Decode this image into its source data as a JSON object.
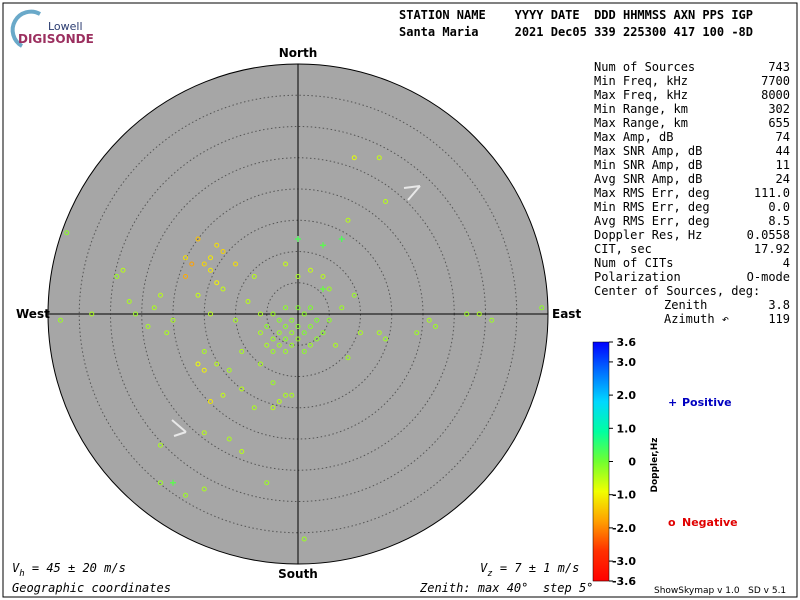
{
  "header": {
    "logo_top": "Lowell",
    "logo_bottom": "DIGISONDE",
    "line1": "STATION NAME    YYYY DATE  DDD HHMMSS AXN PPS IGP",
    "line2": "Santa Maria     2021 Dec05 339 225300 417 100 -8D"
  },
  "stats": {
    "rows": [
      [
        "Num of Sources",
        "743"
      ],
      [
        "Min Freq, kHz",
        "7700"
      ],
      [
        "Max Freq, kHz",
        "8000"
      ],
      [
        "Min Range, km",
        "302"
      ],
      [
        "Max Range, km",
        "655"
      ],
      [
        "Max Amp, dB",
        "74"
      ],
      [
        "Max SNR Amp, dB",
        "44"
      ],
      [
        "Min SNR Amp, dB",
        "11"
      ],
      [
        "Avg SNR Amp, dB",
        "24"
      ],
      [
        "Max RMS Err, deg",
        "111.0"
      ],
      [
        "Min RMS Err, deg",
        "0.0"
      ],
      [
        "Avg RMS Err, deg",
        "8.5"
      ],
      [
        "Doppler Res, Hz",
        "0.0558"
      ],
      [
        "CIT, sec",
        "17.92"
      ],
      [
        "Num of CITs",
        "4"
      ],
      [
        "Polarization",
        "O-mode"
      ]
    ],
    "center_title": "Center of Sources, deg:",
    "center_rows": [
      [
        "Zenith",
        "3.8"
      ],
      [
        "Azimuth ↶",
        "119"
      ]
    ]
  },
  "chart_data": {
    "type": "skymap",
    "directions": {
      "north": "North",
      "south": "South",
      "east": "East",
      "west": "West"
    },
    "rlim": [
      0,
      40
    ],
    "rticks": [
      5,
      10,
      15,
      20,
      25,
      30,
      35
    ],
    "clim": [
      -3.6,
      3.6
    ],
    "cticks": [
      3.6,
      {
        "value": 3,
        "label": "3.0"
      },
      {
        "value": 2,
        "label": "2.0"
      },
      {
        "value": 1,
        "label": "1.0"
      },
      0,
      {
        "value": -1,
        "label": "-1.0"
      },
      {
        "value": -2,
        "label": "-2.0"
      },
      {
        "value": -3,
        "label": "-3.0"
      },
      -3.6
    ],
    "clabel": "Doppler,Hz",
    "colorscale": [
      "#0000ff",
      "#0070ff",
      "#00d8ff",
      "#00ffa0",
      "#70ff30",
      "#f0ff00",
      "#ffa000",
      "#ff3000",
      "#ff0000"
    ],
    "series": [
      {
        "name": "Positive",
        "marker": "+",
        "color": "#0000c0",
        "x": [
          0,
          4,
          7,
          -20,
          4
        ],
        "y": [
          12,
          11,
          12,
          -27,
          4
        ],
        "doppler": [
          0.3,
          0.2,
          0.3,
          0.2,
          0.1
        ]
      },
      {
        "name": "Negative",
        "marker": "o",
        "color": "#e00000",
        "x": [
          -1,
          -2,
          -3,
          0,
          1,
          -4,
          -2,
          -3,
          0,
          2,
          -1,
          -5,
          3,
          -4,
          1,
          -2,
          2,
          -6,
          -3,
          0,
          4,
          -1,
          -2,
          3,
          -5,
          -4,
          1,
          5,
          -6,
          2,
          -8,
          -10,
          -12,
          -7,
          -9,
          -14,
          -16,
          -11,
          -6,
          -4,
          -2,
          -3,
          -13,
          -15,
          -20,
          -22,
          -23,
          -26,
          -27,
          -28,
          -24,
          -21,
          -29,
          5,
          6,
          7,
          4,
          2,
          8,
          10,
          9,
          13,
          14,
          19,
          21,
          22,
          27,
          29,
          31,
          39,
          -33,
          -38,
          -37,
          -15,
          -11,
          -5,
          -9,
          -22,
          -18,
          -15,
          -22,
          -12,
          -4,
          -1,
          9,
          13,
          14,
          8,
          0,
          -2,
          -7,
          1,
          -9,
          -13,
          -14,
          -15,
          -17,
          -18,
          -13,
          -10,
          -12,
          -16,
          -18,
          -14,
          -15,
          -16,
          -14
        ],
        "y": [
          -1,
          -2,
          -3,
          -2,
          -3,
          -4,
          -4,
          -1,
          -4,
          -2,
          -5,
          -2,
          -1,
          0,
          0,
          1,
          -5,
          -3,
          -5,
          1,
          -3,
          -3,
          -6,
          -4,
          -5,
          -6,
          -6,
          -1,
          0,
          1,
          2,
          -1,
          4,
          6,
          -6,
          0,
          3,
          -9,
          -8,
          -11,
          -13,
          -14,
          -8,
          -6,
          -1,
          3,
          1,
          0,
          2,
          7,
          -2,
          -3,
          6,
          4,
          -5,
          1,
          6,
          7,
          -7,
          -3,
          3,
          -3,
          -4,
          -3,
          -1,
          -2,
          0,
          0,
          -1,
          1,
          0,
          -1,
          13,
          -19,
          -20,
          -27,
          -22,
          -21,
          -29,
          -28,
          -27,
          -13,
          -15,
          -13,
          25,
          25,
          18,
          15,
          6,
          8,
          -15,
          -36,
          -12,
          11,
          9,
          8,
          8,
          6,
          5,
          8,
          10,
          12,
          9,
          7,
          -9,
          -8,
          -14
        ],
        "doppler": [
          -0.2,
          -0.2,
          -0.3,
          -0.2,
          -0.1,
          -0.3,
          -0.2,
          -0.2,
          -0.3,
          -0.2,
          -0.3,
          -0.2,
          -0.1,
          -0.3,
          -0.2,
          -0.2,
          -0.3,
          -0.4,
          -0.3,
          -0.1,
          -0.2,
          -0.3,
          -0.3,
          -0.2,
          -0.4,
          -0.3,
          -0.2,
          -0.2,
          -0.4,
          -0.1,
          -0.5,
          -0.4,
          -0.6,
          -0.5,
          -0.4,
          -0.5,
          -0.6,
          -0.4,
          -0.4,
          -0.3,
          -0.4,
          -0.5,
          -0.5,
          -0.4,
          -0.4,
          -0.5,
          -0.4,
          -0.3,
          -0.4,
          -0.5,
          -0.4,
          -0.4,
          -0.3,
          -0.3,
          -0.4,
          -0.3,
          -0.5,
          -0.6,
          -0.3,
          -0.4,
          -0.3,
          -0.4,
          -0.3,
          -0.3,
          -0.4,
          -0.3,
          -0.3,
          -0.4,
          -0.3,
          -0.2,
          -0.4,
          -0.3,
          -0.2,
          -0.5,
          -0.4,
          -0.3,
          -0.5,
          -0.4,
          -0.3,
          -0.4,
          -0.3,
          -0.6,
          -0.5,
          -0.4,
          -0.8,
          -0.6,
          -0.5,
          -0.5,
          -0.4,
          -0.6,
          -0.4,
          -0.3,
          -0.5,
          -1.2,
          -1.1,
          -1.3,
          -1.8,
          -1.7,
          -1.0,
          -1.2,
          -1.3,
          -1.5,
          -1.2,
          -1.1,
          -1.0,
          -0.9,
          -1.1
        ]
      }
    ]
  },
  "footer": {
    "vh_main": "V",
    "vh_sub": "h",
    "vh_rest": " = 45 ± 20 m/s",
    "vz_main": "V",
    "vz_sub": "z",
    "vz_rest": " = 7 ± 1 m/s",
    "coords": "Geographic coordinates",
    "zenith": "Zenith: max 40°  step 5°",
    "version": "ShowSkymap v 1.0   SD v 5.1"
  }
}
